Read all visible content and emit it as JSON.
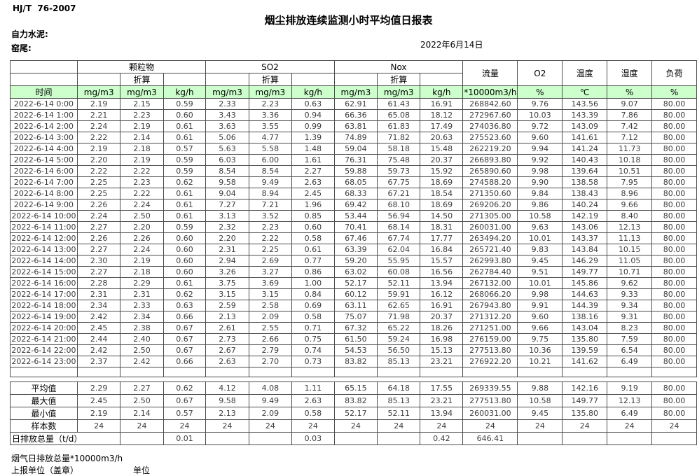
{
  "page": {
    "standard": "HJ/T  76-2007",
    "title": "烟尘排放连续监测小时平均值日报表",
    "company": "自力水泥:",
    "station": "窑尾:",
    "date": "2022年6月14日"
  },
  "table": {
    "header": {
      "time_label": "时间",
      "groups": [
        {
          "label": "颗粒物",
          "sub": "折算",
          "units": [
            "mg/m3",
            "mg/m3",
            "kg/h"
          ]
        },
        {
          "label": "SO2",
          "sub": "折算",
          "units": [
            "mg/m3",
            "mg/m3",
            "kg/h"
          ]
        },
        {
          "label": "Nox",
          "sub": "折算",
          "units": [
            "mg/m3",
            "mg/m3",
            "kg/h"
          ]
        }
      ],
      "singles": [
        {
          "label": "流量",
          "unit": "*10000m3/h"
        },
        {
          "label": "O2",
          "unit": "%"
        },
        {
          "label": "温度",
          "unit": "℃"
        },
        {
          "label": "湿度",
          "unit": "%"
        },
        {
          "label": "负荷",
          "unit": "%"
        }
      ]
    },
    "rows": [
      [
        "2022-6-14 0:00",
        "2.19",
        "2.15",
        "0.59",
        "2.33",
        "2.23",
        "0.63",
        "62.91",
        "61.43",
        "16.91",
        "268842.60",
        "9.76",
        "143.56",
        "9.07",
        "80.00"
      ],
      [
        "2022-6-14 1:00",
        "2.21",
        "2.23",
        "0.60",
        "3.43",
        "3.36",
        "0.94",
        "66.36",
        "65.08",
        "18.12",
        "272967.60",
        "10.03",
        "143.39",
        "7.86",
        "80.00"
      ],
      [
        "2022-6-14 2:00",
        "2.24",
        "2.19",
        "0.61",
        "3.63",
        "3.55",
        "0.99",
        "63.81",
        "61.83",
        "17.49",
        "274036.80",
        "9.72",
        "143.09",
        "7.42",
        "80.00"
      ],
      [
        "2022-6-14 3:00",
        "2.22",
        "2.14",
        "0.61",
        "5.06",
        "4.77",
        "1.39",
        "74.89",
        "71.82",
        "20.63",
        "275523.60",
        "9.60",
        "141.61",
        "7.12",
        "80.00"
      ],
      [
        "2022-6-14 4:00",
        "2.19",
        "2.18",
        "0.57",
        "5.63",
        "5.58",
        "1.48",
        "59.04",
        "58.18",
        "15.48",
        "262219.20",
        "9.94",
        "141.24",
        "11.73",
        "80.00"
      ],
      [
        "2022-6-14 5:00",
        "2.20",
        "2.19",
        "0.59",
        "6.03",
        "6.00",
        "1.61",
        "76.31",
        "75.48",
        "20.37",
        "266893.80",
        "9.92",
        "140.43",
        "10.18",
        "80.00"
      ],
      [
        "2022-6-14 6:00",
        "2.22",
        "2.22",
        "0.59",
        "8.54",
        "8.54",
        "2.27",
        "59.88",
        "59.73",
        "15.92",
        "265890.60",
        "9.98",
        "139.64",
        "10.51",
        "80.00"
      ],
      [
        "2022-6-14 7:00",
        "2.25",
        "2.23",
        "0.62",
        "9.58",
        "9.49",
        "2.63",
        "68.05",
        "67.75",
        "18.69",
        "274588.20",
        "9.90",
        "138.58",
        "7.95",
        "80.00"
      ],
      [
        "2022-6-14 8:00",
        "2.25",
        "2.22",
        "0.61",
        "9.04",
        "8.94",
        "2.45",
        "68.33",
        "67.21",
        "18.54",
        "271350.60",
        "9.84",
        "138.43",
        "8.96",
        "80.00"
      ],
      [
        "2022-6-14 9:00",
        "2.26",
        "2.24",
        "0.61",
        "7.27",
        "7.21",
        "1.96",
        "69.42",
        "68.10",
        "18.69",
        "269206.20",
        "9.86",
        "140.24",
        "9.66",
        "80.00"
      ],
      [
        "2022-6-14 10:00",
        "2.24",
        "2.50",
        "0.61",
        "3.13",
        "3.52",
        "0.85",
        "53.44",
        "56.94",
        "14.50",
        "271305.00",
        "10.58",
        "142.19",
        "8.40",
        "80.00"
      ],
      [
        "2022-6-14 11:00",
        "2.27",
        "2.20",
        "0.59",
        "2.32",
        "2.23",
        "0.60",
        "70.41",
        "68.14",
        "18.31",
        "260031.00",
        "9.63",
        "143.06",
        "12.13",
        "80.00"
      ],
      [
        "2022-6-14 12:00",
        "2.26",
        "2.26",
        "0.60",
        "2.20",
        "2.22",
        "0.58",
        "67.46",
        "67.74",
        "17.77",
        "263494.20",
        "10.01",
        "143.37",
        "11.13",
        "80.00"
      ],
      [
        "2022-6-14 13:00",
        "2.27",
        "2.24",
        "0.60",
        "2.31",
        "2.25",
        "0.61",
        "63.39",
        "62.04",
        "16.84",
        "265721.40",
        "9.83",
        "143.84",
        "10.15",
        "80.00"
      ],
      [
        "2022-6-14 14:00",
        "2.30",
        "2.19",
        "0.60",
        "2.94",
        "2.69",
        "0.77",
        "59.20",
        "55.95",
        "15.57",
        "262993.80",
        "9.45",
        "146.29",
        "11.05",
        "80.00"
      ],
      [
        "2022-6-14 15:00",
        "2.27",
        "2.18",
        "0.60",
        "3.26",
        "3.27",
        "0.86",
        "63.02",
        "60.08",
        "16.56",
        "262784.40",
        "9.51",
        "149.77",
        "10.71",
        "80.00"
      ],
      [
        "2022-6-14 16:00",
        "2.28",
        "2.29",
        "0.61",
        "3.75",
        "3.69",
        "1.00",
        "52.17",
        "52.11",
        "13.94",
        "267132.00",
        "10.01",
        "145.86",
        "9.62",
        "80.00"
      ],
      [
        "2022-6-14 17:00",
        "2.31",
        "2.31",
        "0.62",
        "3.15",
        "3.15",
        "0.84",
        "60.12",
        "59.91",
        "16.12",
        "268066.20",
        "9.98",
        "144.63",
        "9.33",
        "80.00"
      ],
      [
        "2022-6-14 18:00",
        "2.34",
        "2.33",
        "0.63",
        "2.59",
        "2.58",
        "0.69",
        "63.11",
        "62.65",
        "16.91",
        "267943.80",
        "9.91",
        "144.39",
        "9.34",
        "80.00"
      ],
      [
        "2022-6-14 19:00",
        "2.42",
        "2.34",
        "0.66",
        "2.13",
        "2.09",
        "0.58",
        "75.07",
        "71.98",
        "20.37",
        "271312.20",
        "9.60",
        "138.16",
        "9.31",
        "80.00"
      ],
      [
        "2022-6-14 20:00",
        "2.45",
        "2.38",
        "0.67",
        "2.61",
        "2.55",
        "0.71",
        "67.32",
        "65.22",
        "18.26",
        "271251.00",
        "9.66",
        "143.04",
        "8.23",
        "80.00"
      ],
      [
        "2022-6-14 21:00",
        "2.44",
        "2.40",
        "0.67",
        "2.73",
        "2.66",
        "0.75",
        "61.50",
        "59.24",
        "16.98",
        "276159.00",
        "9.75",
        "135.80",
        "7.59",
        "80.00"
      ],
      [
        "2022-6-14 22:00",
        "2.42",
        "2.50",
        "0.67",
        "2.67",
        "2.79",
        "0.74",
        "54.53",
        "56.50",
        "15.13",
        "277513.80",
        "10.36",
        "139.59",
        "6.54",
        "80.00"
      ],
      [
        "2022-6-14 23:00",
        "2.37",
        "2.42",
        "0.66",
        "2.63",
        "2.70",
        "0.73",
        "83.82",
        "85.13",
        "23.21",
        "276922.20",
        "10.21",
        "141.62",
        "6.49",
        "80.00"
      ]
    ],
    "summary_rows": [
      [
        "平均值",
        "2.29",
        "2.27",
        "0.62",
        "4.12",
        "4.08",
        "1.11",
        "65.15",
        "64.18",
        "17.55",
        "269339.55",
        "9.88",
        "142.16",
        "9.19",
        "80.00"
      ],
      [
        "最大值",
        "2.45",
        "2.50",
        "0.67",
        "9.58",
        "9.49",
        "2.63",
        "83.82",
        "85.13",
        "23.21",
        "277513.80",
        "10.58",
        "149.77",
        "12.13",
        "80.00"
      ],
      [
        "最小值",
        "2.19",
        "2.14",
        "0.57",
        "2.13",
        "2.09",
        "0.58",
        "52.17",
        "52.11",
        "13.94",
        "260031.00",
        "9.45",
        "135.80",
        "6.49",
        "80.00"
      ],
      [
        "样本数",
        "24",
        "24",
        "24",
        "24",
        "24",
        "24",
        "24",
        "24",
        "24",
        "24",
        "24",
        "24",
        "24",
        "24"
      ]
    ],
    "total_row": {
      "label": "日排放总量（t/d）",
      "values": [
        "",
        "0.01",
        "",
        "",
        "0.03",
        "",
        "",
        "0.42",
        "646.41",
        "",
        "",
        "",
        ""
      ]
    }
  },
  "footer": {
    "note": "烟气日排放总量*10000m3/h",
    "report_unit": "上报单位（盖章）",
    "unit": "单位"
  },
  "colors": {
    "unit_row_bg": "#ccffcc",
    "unit_row_text": "#006100",
    "grid_line": "#4d4d4d",
    "data_text": "#3c3c3c"
  }
}
